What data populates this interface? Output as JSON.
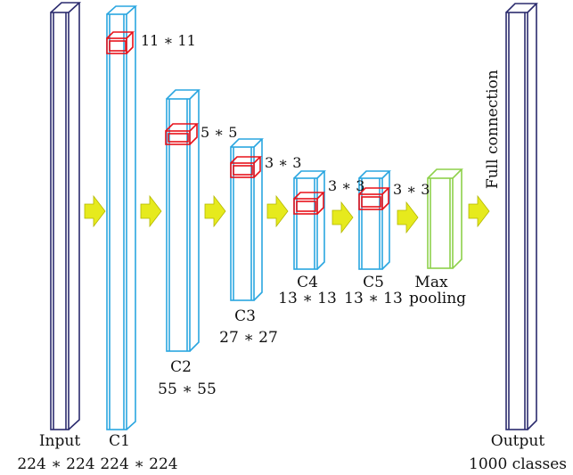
{
  "colors": {
    "input_output": "#2b2b6e",
    "conv": "#2aa6e0",
    "kernel": "#e8121a",
    "pool": "#8ed14a",
    "arrow": "#e6ea1d"
  },
  "layers": {
    "input": {
      "name": "Input",
      "size": "224 ∗ 224"
    },
    "c1": {
      "name": "C1",
      "size": "224 ∗ 224",
      "kernel": "11 ∗ 11"
    },
    "c2": {
      "name": "C2",
      "size": "55 ∗ 55",
      "kernel": "5 ∗ 5"
    },
    "c3": {
      "name": "C3",
      "size": "27 ∗ 27",
      "kernel": "3 ∗ 3"
    },
    "c4": {
      "name": "C4",
      "size": "13 ∗ 13",
      "kernel": "3 ∗ 3"
    },
    "c5": {
      "name": "C5",
      "size": "13 ∗ 13",
      "kernel": "3 ∗ 3"
    },
    "pool": {
      "name_line1": "Max",
      "name_line2": "pooling"
    },
    "fc": {
      "name": "Full connection"
    },
    "output": {
      "name": "Output",
      "size": "1000 classes"
    }
  }
}
